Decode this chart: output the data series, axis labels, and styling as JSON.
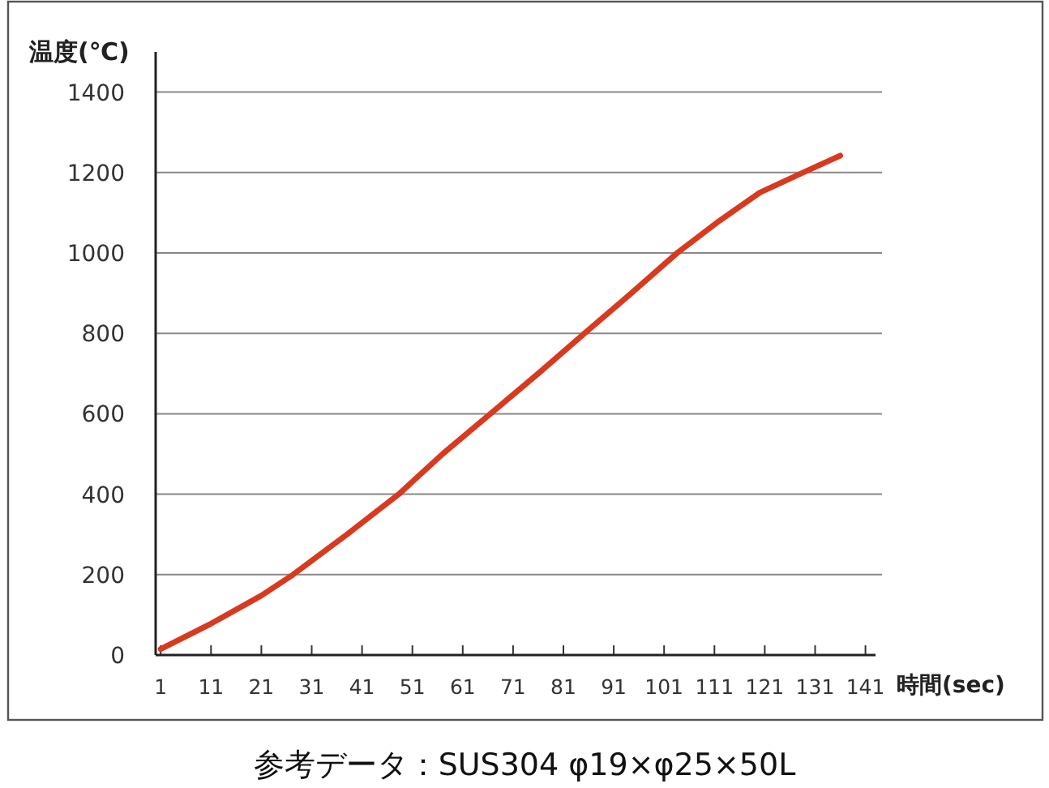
{
  "chart_data": {
    "type": "line",
    "ylabel": "温度(℃)",
    "xlabel": "時間(sec)",
    "annotations": [
      "参考データ：SUS304 φ19×φ25×50L"
    ],
    "x": [
      1,
      11,
      21,
      27.3,
      38,
      48.3,
      57,
      66.5,
      76,
      85.2,
      94.5,
      103.6,
      112,
      120,
      128.6,
      136
    ],
    "series": [
      {
        "color": "#d83a1f",
        "values": [
          15,
          78,
          148,
          200,
          300,
          400,
          500,
          600,
          700,
          800,
          900,
          1000,
          1080,
          1150,
          1200,
          1242
        ]
      }
    ],
    "xlim": [
      0,
      143
    ],
    "ylim": [
      0,
      1500
    ],
    "xticks": [
      1,
      11,
      21,
      31,
      41,
      51,
      61,
      71,
      81,
      91,
      101,
      111,
      121,
      131,
      141
    ],
    "yticks": [
      0,
      200,
      400,
      600,
      800,
      1000,
      1200,
      1400
    ],
    "grid": "y"
  }
}
